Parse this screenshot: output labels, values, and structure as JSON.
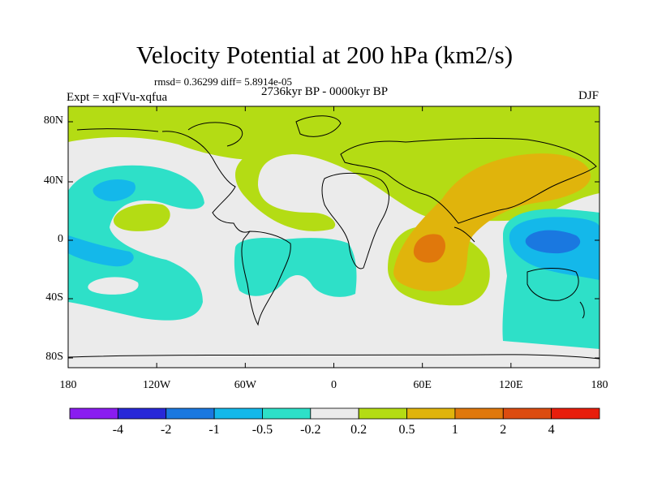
{
  "title": "Velocity Potential at 200 hPa (km2/s)",
  "stats": "rmsd= 0.36299 diff= 5.8914e-05",
  "experiment": "Expt = xqFVu-xqfua",
  "period": "2736kyr BP - 0000kyr BP",
  "season": "DJF",
  "y_ticks": [
    "80N",
    "40N",
    "0",
    "40S",
    "80S"
  ],
  "x_ticks": [
    "180",
    "120W",
    "60W",
    "0",
    "60E",
    "120E",
    "180"
  ],
  "colorbar": {
    "colors": [
      "#8a1cf0",
      "#2828d8",
      "#1a78e0",
      "#14b8ea",
      "#2ee0c8",
      "#ebebeb",
      "#b4dc14",
      "#e0b40c",
      "#e0780c",
      "#dc4c10",
      "#e81e0c"
    ],
    "labels": [
      "-4",
      "-2",
      "-1",
      "-0.5",
      "-0.2",
      "0.2",
      "0.5",
      "1",
      "2",
      "4"
    ]
  }
}
